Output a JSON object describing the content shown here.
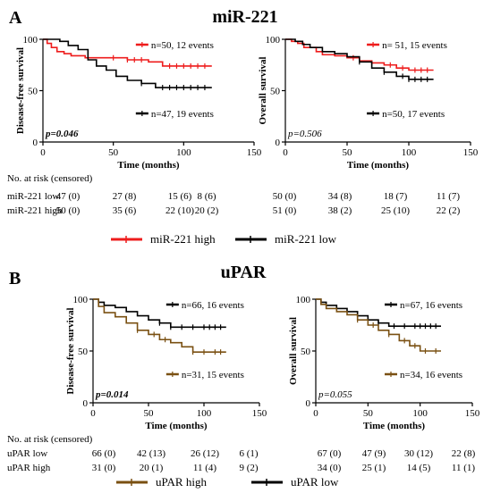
{
  "panels": [
    {
      "letter": "A",
      "title": "miR-221",
      "risk_header": "No. at risk (censored)",
      "risk_rows": [
        {
          "label": "miR-221 low",
          "dfs": [
            "47 (0)",
            "27 (8)",
            "15 (6)",
            "8 (6)"
          ],
          "os": [
            "50 (0)",
            "34 (8)",
            "18 (7)",
            "11 (7)"
          ]
        },
        {
          "label": "miR-221 high",
          "dfs": [
            "50 (0)",
            "35 (6)",
            "22 (10)",
            "20 (2)"
          ],
          "os": [
            "51 (0)",
            "38 (2)",
            "25 (10)",
            "22 (2)"
          ]
        }
      ],
      "legend": [
        {
          "label": "miR-221 high",
          "color": "#ee1c1c"
        },
        {
          "label": "miR-221 low",
          "color": "#000000"
        }
      ]
    },
    {
      "letter": "B",
      "title": "uPAR",
      "risk_header": "No. at risk (censored)",
      "risk_rows": [
        {
          "label": "uPAR low",
          "dfs": [
            "66 (0)",
            "42 (13)",
            "26 (12)",
            "6 (1)"
          ],
          "os": [
            "67 (0)",
            "47 (9)",
            "30 (12)",
            "22 (8)"
          ]
        },
        {
          "label": "uPAR  high",
          "dfs": [
            "31 (0)",
            "20 (1)",
            "11 (4)",
            "9 (2)"
          ],
          "os": [
            "34 (0)",
            "25 (1)",
            "14 (5)",
            "11 (1)"
          ]
        }
      ],
      "legend": [
        {
          "label": "uPAR high",
          "color": "#7a5012"
        },
        {
          "label": "uPAR low",
          "color": "#000000"
        }
      ]
    }
  ],
  "chart_data": [
    {
      "type": "line",
      "panel": "A",
      "ylabel": "Disease-free survival",
      "xlabel": "Time (months)",
      "xlim": [
        0,
        150
      ],
      "ylim": [
        0,
        100
      ],
      "xticks": [
        0,
        50,
        100,
        150
      ],
      "yticks": [
        0,
        50,
        100
      ],
      "pvalue": "p=0.046",
      "pvalue_bold": true,
      "series": [
        {
          "name": "n=50, 12 events",
          "color": "#ee1c1c",
          "label_pos": "top",
          "x": [
            0,
            3,
            6,
            10,
            15,
            20,
            30,
            45,
            60,
            75,
            85,
            120
          ],
          "y": [
            100,
            96,
            92,
            88,
            86,
            84,
            82,
            82,
            80,
            78,
            74,
            74
          ],
          "censor_x": [
            50,
            60,
            65,
            70,
            90,
            95,
            100,
            105,
            110,
            115
          ]
        },
        {
          "name": "n=47, 19 events",
          "color": "#000000",
          "label_pos": "bottom",
          "x": [
            0,
            12,
            18,
            25,
            32,
            38,
            45,
            52,
            60,
            70,
            80,
            120
          ],
          "y": [
            100,
            98,
            94,
            90,
            80,
            74,
            70,
            64,
            60,
            57,
            53,
            53
          ],
          "censor_x": [
            70,
            85,
            90,
            95,
            100,
            105,
            110,
            115
          ]
        }
      ]
    },
    {
      "type": "line",
      "panel": "A",
      "ylabel": "Overall survival",
      "xlabel": "Time (months)",
      "xlim": [
        0,
        150
      ],
      "ylim": [
        0,
        100
      ],
      "xticks": [
        0,
        50,
        100,
        150
      ],
      "yticks": [
        0,
        50,
        100
      ],
      "pvalue": "p=0.506",
      "pvalue_bold": false,
      "series": [
        {
          "name": "n= 51, 15 events",
          "color": "#ee1c1c",
          "label_pos": "top",
          "x": [
            0,
            5,
            10,
            15,
            25,
            30,
            40,
            50,
            60,
            70,
            80,
            90,
            100,
            120
          ],
          "y": [
            100,
            98,
            96,
            92,
            88,
            85,
            84,
            82,
            79,
            77,
            75,
            72,
            70,
            70
          ],
          "censor_x": [
            55,
            70,
            85,
            95,
            105,
            110,
            115
          ]
        },
        {
          "name": "n=50, 17 events",
          "color": "#000000",
          "label_pos": "bottom",
          "x": [
            0,
            8,
            14,
            20,
            30,
            40,
            50,
            60,
            70,
            80,
            90,
            100,
            120
          ],
          "y": [
            100,
            98,
            95,
            92,
            88,
            86,
            83,
            78,
            72,
            68,
            64,
            61,
            61
          ],
          "censor_x": [
            60,
            80,
            95,
            100,
            105,
            110,
            115
          ]
        }
      ]
    },
    {
      "type": "line",
      "panel": "B",
      "ylabel": "Disease-free survival",
      "xlabel": "Time (months)",
      "xlim": [
        0,
        150
      ],
      "ylim": [
        0,
        100
      ],
      "xticks": [
        0,
        50,
        100,
        150
      ],
      "yticks": [
        0,
        50,
        100
      ],
      "pvalue": "p=0.014",
      "pvalue_bold": true,
      "series": [
        {
          "name": "n=66, 16 events",
          "color": "#000000",
          "label_pos": "top",
          "x": [
            0,
            5,
            10,
            20,
            30,
            40,
            50,
            60,
            70,
            120
          ],
          "y": [
            100,
            97,
            94,
            92,
            88,
            84,
            80,
            77,
            73,
            73
          ],
          "censor_x": [
            60,
            70,
            80,
            90,
            100,
            105,
            110,
            115
          ]
        },
        {
          "name": "n=31, 15 events",
          "color": "#7a5012",
          "label_pos": "bottom",
          "x": [
            0,
            5,
            10,
            20,
            30,
            40,
            50,
            60,
            70,
            80,
            90,
            120
          ],
          "y": [
            100,
            93,
            87,
            83,
            77,
            70,
            66,
            61,
            58,
            54,
            49,
            49
          ],
          "censor_x": [
            40,
            55,
            65,
            90,
            100,
            110,
            115
          ]
        }
      ]
    },
    {
      "type": "line",
      "panel": "B",
      "ylabel": "Overall survival",
      "xlabel": "Time (months)",
      "xlim": [
        0,
        150
      ],
      "ylim": [
        0,
        100
      ],
      "xticks": [
        0,
        50,
        100,
        150
      ],
      "yticks": [
        0,
        50,
        100
      ],
      "pvalue": "p=0.055",
      "pvalue_bold": false,
      "series": [
        {
          "name": "n=67, 16 events",
          "color": "#000000",
          "label_pos": "top",
          "x": [
            0,
            5,
            10,
            20,
            30,
            40,
            50,
            60,
            70,
            120
          ],
          "y": [
            100,
            97,
            94,
            91,
            88,
            84,
            80,
            77,
            74,
            74
          ],
          "censor_x": [
            60,
            75,
            85,
            95,
            100,
            105,
            110,
            115
          ]
        },
        {
          "name": "n=34, 16 events",
          "color": "#7a5012",
          "label_pos": "bottom",
          "x": [
            0,
            5,
            10,
            20,
            30,
            40,
            50,
            60,
            70,
            80,
            90,
            100,
            120
          ],
          "y": [
            100,
            95,
            91,
            88,
            85,
            80,
            75,
            70,
            66,
            60,
            55,
            50,
            50
          ],
          "censor_x": [
            40,
            55,
            70,
            85,
            95,
            105,
            115
          ]
        }
      ]
    }
  ]
}
